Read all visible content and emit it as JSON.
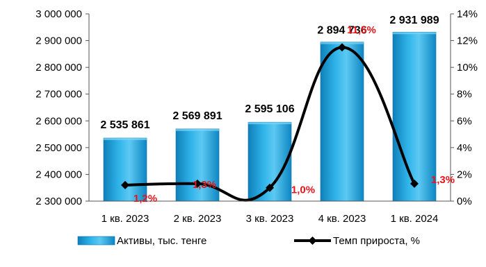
{
  "chart_data": {
    "type": "bar",
    "categories": [
      "1 кв. 2023",
      "2 кв. 2023",
      "3 кв. 2023",
      "4 кв. 2023",
      "1 кв. 2024"
    ],
    "series": [
      {
        "name": "Активы, тыс. тенге",
        "type": "bar",
        "axis": "left",
        "values": [
          2535861,
          2569891,
          2595106,
          2894736,
          2931989
        ],
        "labels": [
          "2 535 861",
          "2 569 891",
          "2 595 106",
          "2 894 736",
          "2 931 989"
        ],
        "color": "#1FA3DC"
      },
      {
        "name": "Темп прироста, %",
        "type": "line",
        "axis": "right",
        "values": [
          1.2,
          1.3,
          1.0,
          11.5,
          1.3
        ],
        "labels": [
          "1,2%",
          "1,3%",
          "1,0%",
          "11,5%",
          "1,3%"
        ],
        "color": "#000000",
        "label_color": "#E8141B"
      }
    ],
    "y_left": {
      "min": 2300000,
      "max": 3000000,
      "ticks": [
        2300000,
        2400000,
        2500000,
        2600000,
        2700000,
        2800000,
        2900000,
        3000000
      ],
      "tick_labels": [
        "2 300 000",
        "2 400 000",
        "2 500 000",
        "2 600 000",
        "2 700 000",
        "2 800 000",
        "2 900 000",
        "3 000 000"
      ]
    },
    "y_right": {
      "min": 0,
      "max": 14,
      "ticks": [
        0,
        2,
        4,
        6,
        8,
        10,
        12,
        14
      ],
      "tick_labels": [
        "0%",
        "2%",
        "4%",
        "6%",
        "8%",
        "10%",
        "12%",
        "14%"
      ]
    },
    "grid": false,
    "legend": "bottom"
  }
}
